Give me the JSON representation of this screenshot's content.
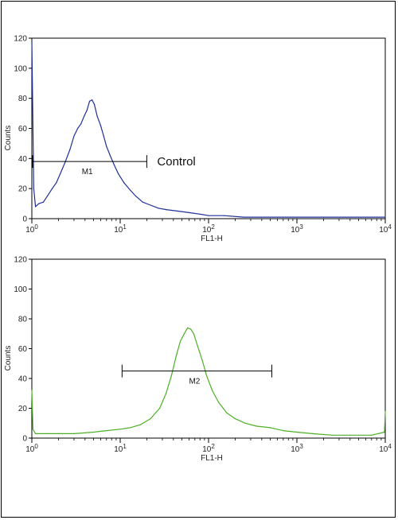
{
  "chart_data": [
    {
      "type": "line",
      "title": "",
      "xlabel": "FL1-H",
      "ylabel": "Counts",
      "x_scale": "log",
      "xlim": [
        1,
        10000
      ],
      "ylim": [
        0,
        120
      ],
      "x_tick_labels": [
        {
          "base": "10",
          "exp": "0"
        },
        {
          "base": "10",
          "exp": "1"
        },
        {
          "base": "10",
          "exp": "2"
        },
        {
          "base": "10",
          "exp": "3"
        },
        {
          "base": "10",
          "exp": "4"
        }
      ],
      "y_tick_labels": [
        "0",
        "20",
        "40",
        "60",
        "80",
        "100",
        "120"
      ],
      "series_color": "#1f2f9a",
      "series": [
        {
          "x": [
            1.0,
            1.05,
            1.1,
            1.2,
            1.35,
            1.5,
            1.7,
            1.9,
            2.1,
            2.4,
            2.7,
            3.0,
            3.3,
            3.6,
            3.9,
            4.2,
            4.5,
            4.8,
            5.1,
            5.5,
            6.0,
            6.5,
            7.0,
            7.7,
            8.5,
            9.5,
            11,
            13,
            15,
            18,
            22,
            27,
            33,
            45,
            60,
            80,
            100,
            150,
            250,
            400,
            700,
            1000,
            2000,
            5000,
            10000
          ],
          "y": [
            118,
            20,
            8,
            10,
            11,
            15,
            20,
            24,
            30,
            38,
            46,
            55,
            60,
            63,
            68,
            72,
            78,
            79,
            76,
            68,
            62,
            55,
            48,
            42,
            36,
            30,
            24,
            19,
            15,
            11,
            9,
            7,
            6,
            5,
            4,
            3,
            2,
            2,
            1,
            1,
            1,
            1,
            1,
            1,
            1
          ]
        }
      ],
      "gates": [
        {
          "label": "M1",
          "x_start": 1.02,
          "x_end": 20,
          "y": 38
        }
      ],
      "annotation": "Control"
    },
    {
      "type": "line",
      "title": "",
      "xlabel": "FL1-H",
      "ylabel": "Counts",
      "x_scale": "log",
      "xlim": [
        1,
        10000
      ],
      "ylim": [
        0,
        120
      ],
      "x_tick_labels": [
        {
          "base": "10",
          "exp": "0"
        },
        {
          "base": "10",
          "exp": "1"
        },
        {
          "base": "10",
          "exp": "2"
        },
        {
          "base": "10",
          "exp": "3"
        },
        {
          "base": "10",
          "exp": "4"
        }
      ],
      "y_tick_labels": [
        "0",
        "20",
        "40",
        "60",
        "80",
        "100",
        "120"
      ],
      "series_color": "#4caf25",
      "series": [
        {
          "x": [
            1.0,
            1.03,
            1.1,
            1.5,
            2,
            3,
            5,
            7,
            10,
            13,
            17,
            22,
            28,
            33,
            38,
            43,
            48,
            53,
            58,
            63,
            68,
            75,
            85,
            95,
            110,
            130,
            160,
            200,
            260,
            350,
            500,
            700,
            1000,
            1500,
            2500,
            4000,
            7000,
            9800,
            10000
          ],
          "y": [
            32,
            6,
            3,
            3,
            3,
            3,
            4,
            5,
            6,
            7,
            9,
            13,
            20,
            30,
            42,
            55,
            65,
            70,
            74,
            73,
            70,
            62,
            52,
            42,
            32,
            24,
            17,
            13,
            10,
            8,
            7,
            5,
            4,
            3,
            2,
            2,
            2,
            4,
            18
          ]
        }
      ],
      "gates": [
        {
          "label": "M2",
          "x_start": 10.5,
          "x_end": 520,
          "y": 45
        }
      ]
    }
  ]
}
